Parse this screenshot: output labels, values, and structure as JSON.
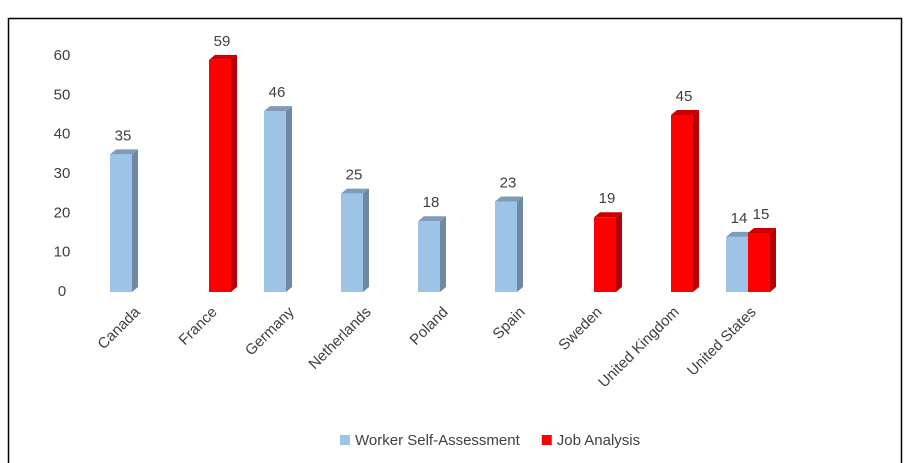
{
  "chart_data": {
    "type": "bar",
    "categories": [
      "Canada",
      "France",
      "Germany",
      "Netherlands",
      "Poland",
      "Spain",
      "Sweden",
      "United Kingdom",
      "United States"
    ],
    "series": [
      {
        "name": "Worker Self-Assessment",
        "color": "#9dc3e6",
        "values": [
          35,
          null,
          46,
          25,
          18,
          23,
          null,
          null,
          14
        ]
      },
      {
        "name": "Job Analysis",
        "color": "#ff0000",
        "values": [
          null,
          59,
          null,
          null,
          null,
          null,
          19,
          45,
          15
        ]
      }
    ],
    "ylim": [
      0,
      60
    ],
    "yticks": [
      0,
      10,
      20,
      30,
      40,
      50,
      60
    ],
    "grid": false,
    "legend": "bottom"
  }
}
